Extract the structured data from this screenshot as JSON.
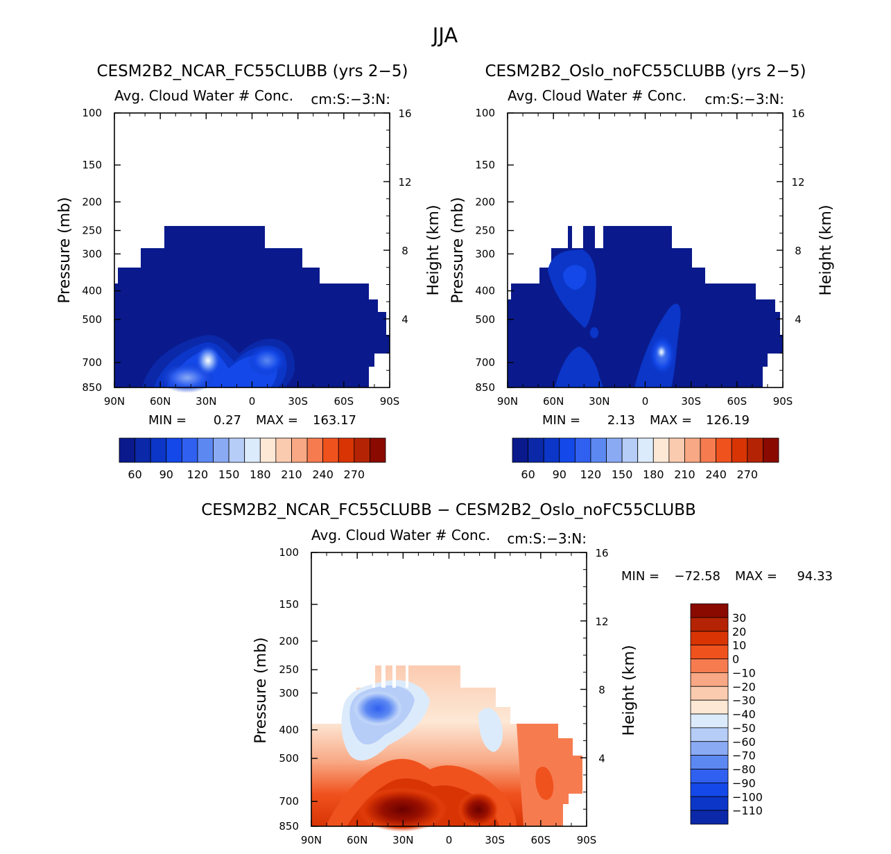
{
  "page": {
    "title": "JJA"
  },
  "chart_data": [
    {
      "type": "heatmap",
      "id": "ncar",
      "title": "CESM2B2_NCAR_FC55CLUBB (yrs 2−5)",
      "subtitle_left": "Avg. Cloud Water # Conc.",
      "subtitle_right": "cm:S:−3:N:",
      "ylabel": "Pressure (mb)",
      "ylabel_right": "Height (km)",
      "x_ticks": [
        "90N",
        "60N",
        "30N",
        "0",
        "30S",
        "60S",
        "90S"
      ],
      "y_ticks": [
        100,
        150,
        200,
        250,
        300,
        400,
        500,
        700,
        850
      ],
      "y_right_ticks": [
        16,
        12,
        8,
        4
      ],
      "min_label": "MIN =",
      "min_value": "0.27",
      "max_label": "MAX =",
      "max_value": "163.17",
      "colorbar_labels": [
        "60",
        "90",
        "120",
        "150",
        "180",
        "210",
        "240",
        "270"
      ],
      "colors": [
        "#0a1a8c",
        "#0a28a8",
        "#0b36c8",
        "#1448e8",
        "#3060f0",
        "#5c88f2",
        "#8aaaf4",
        "#b6cdf8",
        "#dcebfb",
        "#fde8d6",
        "#fbcbb0",
        "#f8a884",
        "#f67c50",
        "#f0521e",
        "#d83404",
        "#b42404",
        "#8a0a00"
      ]
    },
    {
      "type": "heatmap",
      "id": "oslo",
      "title": "CESM2B2_Oslo_noFC55CLUBB (yrs 2−5)",
      "subtitle_left": "Avg. Cloud Water # Conc.",
      "subtitle_right": "cm:S:−3:N:",
      "ylabel": "Pressure (mb)",
      "ylabel_right": "Height (km)",
      "x_ticks": [
        "90N",
        "60N",
        "30N",
        "0",
        "30S",
        "60S",
        "90S"
      ],
      "y_ticks": [
        100,
        150,
        200,
        250,
        300,
        400,
        500,
        700,
        850
      ],
      "y_right_ticks": [
        16,
        12,
        8,
        4
      ],
      "min_label": "MIN =",
      "min_value": "2.13",
      "max_label": "MAX =",
      "max_value": "126.19",
      "colorbar_labels": [
        "60",
        "90",
        "120",
        "150",
        "180",
        "210",
        "240",
        "270"
      ]
    },
    {
      "type": "heatmap",
      "id": "diff",
      "title": "CESM2B2_NCAR_FC55CLUBB − CESM2B2_Oslo_noFC55CLUBB",
      "subtitle_left": "Avg. Cloud Water # Conc.",
      "subtitle_right": "cm:S:−3:N:",
      "ylabel": "Pressure (mb)",
      "ylabel_right": "Height (km)",
      "x_ticks": [
        "90N",
        "60N",
        "30N",
        "0",
        "30S",
        "60S",
        "90S"
      ],
      "y_ticks": [
        100,
        150,
        200,
        250,
        300,
        400,
        500,
        700,
        850
      ],
      "y_right_ticks": [
        16,
        12,
        8,
        4
      ],
      "min_label": "MIN =",
      "min_value": "−72.58",
      "max_label": "MAX =",
      "max_value": "94.33",
      "colorbar_labels": [
        "30",
        "20",
        "10",
        "0",
        "−10",
        "−20",
        "−30",
        "−40",
        "−50",
        "−60",
        "−70",
        "−80",
        "−90",
        "−100",
        "−110"
      ]
    }
  ]
}
